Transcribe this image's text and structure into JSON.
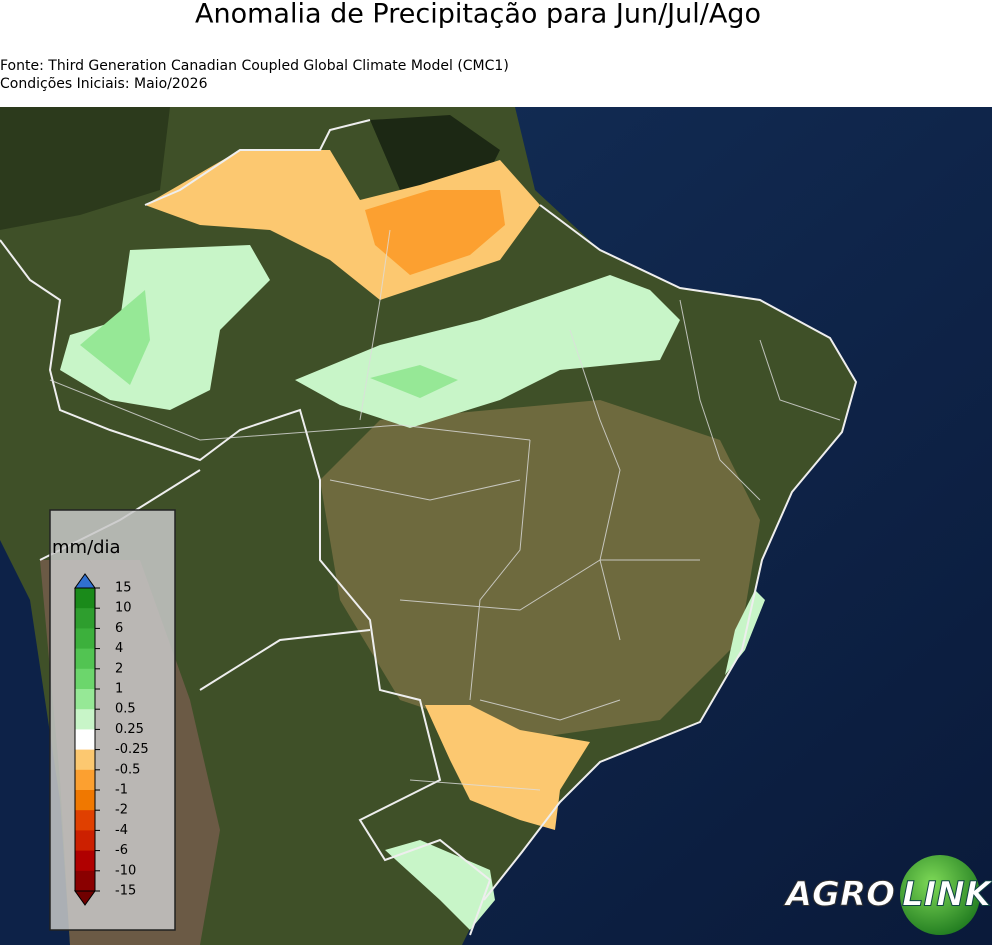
{
  "header": {
    "title": "Anomalia de Precipitação para Jun/Jul/Ago",
    "source": "Fonte: Third Generation Canadian Coupled Global Climate Model (CMC1)",
    "initial_conditions": "Condições Iniciais: Maio/2026"
  },
  "legend": {
    "title": "mm/dia",
    "ticks": [
      15,
      10,
      6,
      4,
      2,
      1,
      0.5,
      0.25,
      -0.25,
      -0.5,
      -1,
      -2,
      -4,
      -6,
      -10,
      -15
    ],
    "colors": [
      "#1a8a1a",
      "#2e9e2e",
      "#3cb03c",
      "#52c452",
      "#6cd66c",
      "#96e896",
      "#c8f5c8",
      "#ffffff",
      "#fcc870",
      "#fca030",
      "#f07800",
      "#e04000",
      "#cc2000",
      "#b00000",
      "#8a0000"
    ],
    "extend_max_color": "#3070d0",
    "extend_min_color": "#700000"
  },
  "logo": {
    "left": "AGRO",
    "right": "LINK"
  }
}
